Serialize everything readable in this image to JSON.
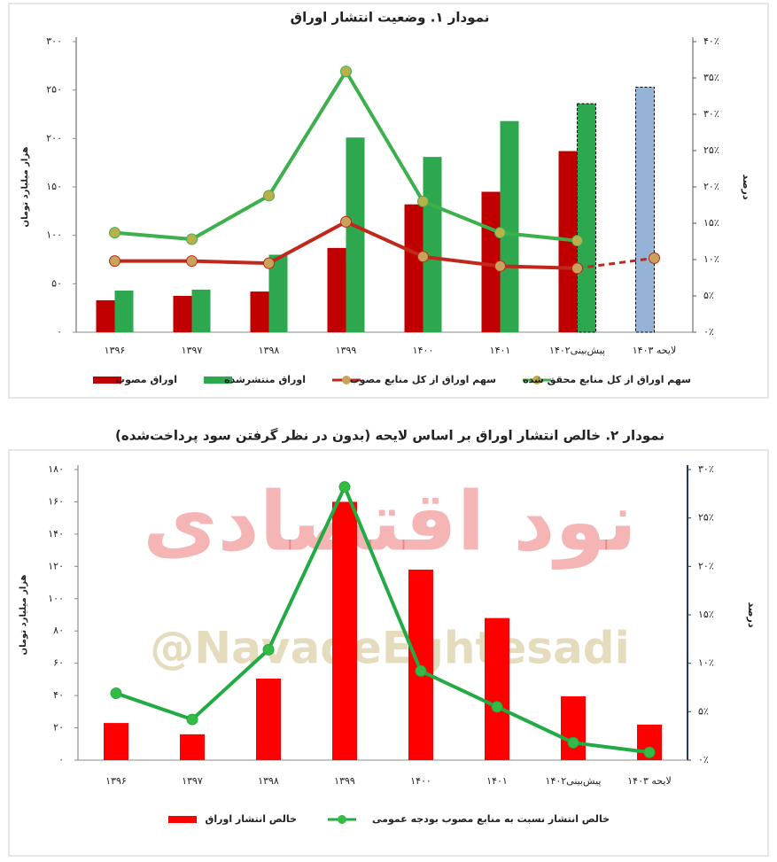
{
  "chart_data": [
    {
      "type": "combo",
      "title": "نمودار ۱. وضعیت انتشار اوراق",
      "y_label": "هزار میلیارد تومان",
      "y2_label": "درصد",
      "categories": [
        "۱۳۹۶",
        "۱۳۹۷",
        "۱۳۹۸",
        "۱۳۹۹",
        "۱۴۰۰",
        "۱۴۰۱",
        "پیش‌بینی۱۴۰۲",
        "لایحه ۱۴۰۳"
      ],
      "ylim": [
        0,
        300
      ],
      "yticks": [
        {
          "value": 0,
          "label": "۰"
        },
        {
          "value": 50,
          "label": "۵۰"
        },
        {
          "value": 100,
          "label": "۱۰۰"
        },
        {
          "value": 150,
          "label": "۱۵۰"
        },
        {
          "value": 200,
          "label": "۲۰۰"
        },
        {
          "value": 250,
          "label": "۲۵۰"
        },
        {
          "value": 300,
          "label": "۳۰۰"
        }
      ],
      "y2lim": [
        0,
        40
      ],
      "y2ticks": [
        {
          "value": 0,
          "label": "۰٪"
        },
        {
          "value": 5,
          "label": "۵٪"
        },
        {
          "value": 10,
          "label": "۱۰٪"
        },
        {
          "value": 15,
          "label": "۱۵٪"
        },
        {
          "value": 20,
          "label": "۲۰٪"
        },
        {
          "value": 25,
          "label": "۲۵٪"
        },
        {
          "value": 30,
          "label": "۳۰٪"
        },
        {
          "value": 35,
          "label": "۳۵٪"
        },
        {
          "value": 40,
          "label": "۴۰٪"
        }
      ],
      "grid": false,
      "series": [
        {
          "name": "اوراق مصوب",
          "kind": "bar",
          "color": "#c00000",
          "colors": [
            "#c00000",
            "#c00000",
            "#c00000",
            "#c00000",
            "#c00000",
            "#c00000",
            "#c00000",
            "#95b3d7"
          ],
          "dashed": [
            false,
            false,
            false,
            false,
            false,
            false,
            false,
            true
          ],
          "values": [
            33,
            37.5,
            42,
            87,
            132,
            145,
            187,
            253
          ]
        },
        {
          "name": "اوراق منتشرشده",
          "kind": "bar",
          "color": "#2ea84f",
          "dashed": [
            false,
            false,
            false,
            false,
            false,
            false,
            true,
            false
          ],
          "values": [
            43,
            44,
            80,
            201,
            181,
            218,
            236,
            null
          ]
        },
        {
          "name": "سهم اوراق از کل منابع مصوب",
          "kind": "line",
          "axis": "y2",
          "color": "#c0281c",
          "marker_color": "#c9a35a",
          "dashed_last_segment": true,
          "values": [
            9.8,
            9.8,
            9.5,
            15.2,
            10.4,
            9.1,
            8.8,
            10.2
          ]
        },
        {
          "name": "سهم اوراق از کل منابع محقق شده",
          "kind": "line",
          "axis": "y2",
          "color": "#3cb04c",
          "marker_color": "#b8b04a",
          "values": [
            13.7,
            12.8,
            18.8,
            35.9,
            18,
            13.7,
            12.6,
            null
          ]
        }
      ]
    },
    {
      "type": "combo",
      "title": "نمودار ۲. خالص انتشار اوراق بر اساس لایحه (بدون در نظر گرفتن سود پرداخت‌شده)",
      "y_label": "هزار میلیارد تومان",
      "y2_label": "درصد",
      "categories": [
        "۱۳۹۶",
        "۱۳۹۷",
        "۱۳۹۸",
        "۱۳۹۹",
        "۱۴۰۰",
        "۱۴۰۱",
        "پیش‌بینی۱۴۰۲",
        "لایحه ۱۴۰۳"
      ],
      "ylim": [
        0,
        180
      ],
      "yticks": [
        {
          "value": 0,
          "label": "۰"
        },
        {
          "value": 20,
          "label": "۲۰"
        },
        {
          "value": 40,
          "label": "۴۰"
        },
        {
          "value": 60,
          "label": "۶۰"
        },
        {
          "value": 80,
          "label": "۸۰"
        },
        {
          "value": 100,
          "label": "۱۰۰"
        },
        {
          "value": 120,
          "label": "۱۲۰"
        },
        {
          "value": 140,
          "label": "۱۴۰"
        },
        {
          "value": 160,
          "label": "۱۶۰"
        },
        {
          "value": 180,
          "label": "۱۸۰"
        }
      ],
      "y2lim": [
        0,
        30
      ],
      "y2ticks": [
        {
          "value": 0,
          "label": "۰٪"
        },
        {
          "value": 5,
          "label": "۵٪"
        },
        {
          "value": 10,
          "label": "۱۰٪"
        },
        {
          "value": 15,
          "label": "۱۵٪"
        },
        {
          "value": 20,
          "label": "۲۰٪"
        },
        {
          "value": 25,
          "label": "۲۵٪"
        },
        {
          "value": 30,
          "label": "۳۰٪"
        }
      ],
      "grid": false,
      "series": [
        {
          "name": "خالص انتشار اوراق",
          "kind": "bar",
          "color": "#ff0000",
          "values": [
            23,
            16,
            50.5,
            160,
            118,
            88,
            39.5,
            22
          ]
        },
        {
          "name": "خالص انتشار نسبت به منابع مصوب بودجه عمومی",
          "kind": "line",
          "axis": "y2",
          "color": "#22aa44",
          "marker_color": "#33bb44",
          "values": [
            6.9,
            4.2,
            11.4,
            28.2,
            9.2,
            5.5,
            1.8,
            0.8
          ]
        }
      ]
    }
  ],
  "watermark": {
    "name": "نود اقتصادی",
    "handle": "@NavadeEghtesadi"
  }
}
